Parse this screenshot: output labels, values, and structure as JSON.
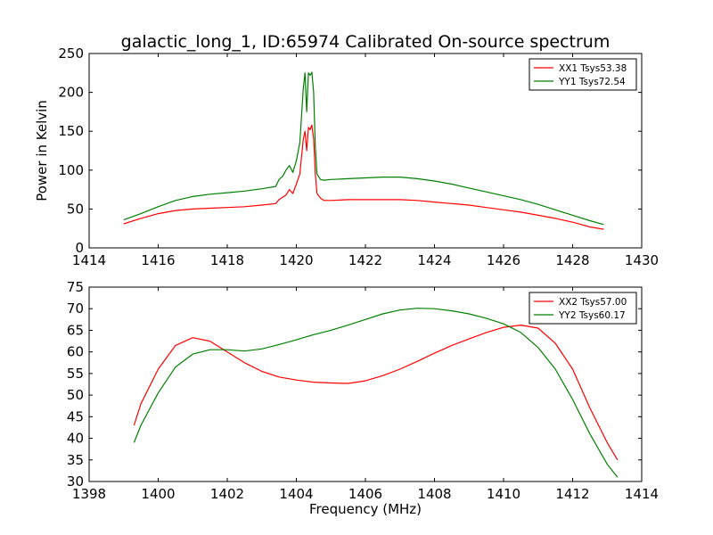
{
  "page": {
    "title": "galactic_long_1, ID:65974 Calibrated On-source spectrum"
  },
  "chart_data": [
    {
      "type": "line",
      "title": "galactic_long_1, ID:65974 Calibrated On-source spectrum",
      "xlabel": "",
      "ylabel": "Power in Kelvin",
      "xlim": [
        1414,
        1430
      ],
      "ylim": [
        0,
        250
      ],
      "xticks": [
        "1414",
        "1416",
        "1418",
        "1420",
        "1422",
        "1424",
        "1426",
        "1428",
        "1430"
      ],
      "yticks": [
        "0",
        "50",
        "100",
        "150",
        "200",
        "250"
      ],
      "grid": false,
      "legend": "top-right",
      "series": [
        {
          "name": "XX1 Tsys53.38",
          "color": "#ff0000",
          "x": [
            1415.0,
            1415.5,
            1416.0,
            1416.5,
            1417.0,
            1417.5,
            1418.0,
            1418.5,
            1419.0,
            1419.4,
            1419.5,
            1419.6,
            1419.7,
            1419.8,
            1419.9,
            1420.0,
            1420.1,
            1420.2,
            1420.25,
            1420.3,
            1420.35,
            1420.4,
            1420.45,
            1420.5,
            1420.55,
            1420.6,
            1420.7,
            1420.8,
            1421.0,
            1421.5,
            1422.0,
            1422.5,
            1423.0,
            1423.5,
            1424.0,
            1424.5,
            1425.0,
            1425.5,
            1426.0,
            1426.5,
            1427.0,
            1427.5,
            1428.0,
            1428.5,
            1428.9
          ],
          "y": [
            31,
            38,
            44,
            48,
            50,
            51,
            52,
            53,
            55,
            57,
            62,
            65,
            68,
            75,
            70,
            82,
            95,
            140,
            150,
            125,
            155,
            152,
            158,
            140,
            95,
            70,
            64,
            61,
            61,
            62,
            62,
            62,
            62,
            61,
            59,
            57,
            55,
            52,
            49,
            46,
            42,
            38,
            33,
            27,
            24
          ]
        },
        {
          "name": "YY1 Tsys72.54",
          "color": "#008000",
          "x": [
            1415.0,
            1415.5,
            1416.0,
            1416.5,
            1417.0,
            1417.5,
            1418.0,
            1418.5,
            1419.0,
            1419.4,
            1419.5,
            1419.6,
            1419.7,
            1419.8,
            1419.9,
            1420.0,
            1420.1,
            1420.2,
            1420.25,
            1420.3,
            1420.35,
            1420.4,
            1420.45,
            1420.5,
            1420.55,
            1420.6,
            1420.7,
            1420.8,
            1421.0,
            1421.5,
            1422.0,
            1422.5,
            1423.0,
            1423.5,
            1424.0,
            1424.5,
            1425.0,
            1425.5,
            1426.0,
            1426.5,
            1427.0,
            1427.5,
            1428.0,
            1428.5,
            1428.9
          ],
          "y": [
            36,
            44,
            53,
            61,
            66,
            69,
            71,
            73,
            76,
            79,
            88,
            92,
            100,
            106,
            97,
            112,
            135,
            205,
            225,
            175,
            225,
            222,
            226,
            200,
            130,
            95,
            88,
            87,
            88,
            89,
            90,
            91,
            91,
            89,
            86,
            82,
            77,
            72,
            67,
            62,
            56,
            49,
            42,
            35,
            30
          ]
        }
      ]
    },
    {
      "type": "line",
      "title": "",
      "xlabel": "Frequency (MHz)",
      "ylabel": "",
      "xlim": [
        1398,
        1414
      ],
      "ylim": [
        30,
        75
      ],
      "xticks": [
        "1398",
        "1400",
        "1402",
        "1404",
        "1406",
        "1408",
        "1410",
        "1412",
        "1414"
      ],
      "yticks": [
        "30",
        "35",
        "40",
        "45",
        "50",
        "55",
        "60",
        "65",
        "70",
        "75"
      ],
      "grid": false,
      "legend": "top-right",
      "series": [
        {
          "name": "XX2 Tsys57.00",
          "color": "#ff0000",
          "x": [
            1399.3,
            1399.5,
            1400.0,
            1400.5,
            1401.0,
            1401.5,
            1402.0,
            1402.5,
            1403.0,
            1403.5,
            1404.0,
            1404.5,
            1405.0,
            1405.5,
            1406.0,
            1406.5,
            1407.0,
            1407.5,
            1408.0,
            1408.5,
            1409.0,
            1409.5,
            1410.0,
            1410.5,
            1411.0,
            1411.5,
            1412.0,
            1412.5,
            1413.0,
            1413.3
          ],
          "y": [
            43,
            48,
            56,
            61.5,
            63.3,
            62.5,
            60,
            57.5,
            55.5,
            54.2,
            53.5,
            53.0,
            52.8,
            52.7,
            53.3,
            54.5,
            56,
            57.8,
            59.7,
            61.5,
            63,
            64.5,
            65.7,
            66.2,
            65.5,
            62,
            56,
            47,
            39,
            35
          ]
        },
        {
          "name": "YY2 Tsys60.17",
          "color": "#008000",
          "x": [
            1399.3,
            1399.5,
            1400.0,
            1400.5,
            1401.0,
            1401.5,
            1402.0,
            1402.5,
            1403.0,
            1403.5,
            1404.0,
            1404.5,
            1405.0,
            1405.5,
            1406.0,
            1406.5,
            1407.0,
            1407.5,
            1408.0,
            1408.5,
            1409.0,
            1409.5,
            1410.0,
            1410.5,
            1411.0,
            1411.5,
            1412.0,
            1412.5,
            1413.0,
            1413.3
          ],
          "y": [
            39,
            43,
            50.5,
            56.5,
            59.5,
            60.5,
            60.5,
            60.2,
            60.7,
            61.7,
            62.8,
            64,
            65,
            66.2,
            67.5,
            68.8,
            69.7,
            70.1,
            70,
            69.5,
            68.8,
            67.8,
            66.5,
            64.5,
            61,
            56,
            49,
            41,
            34,
            31
          ]
        }
      ]
    }
  ]
}
